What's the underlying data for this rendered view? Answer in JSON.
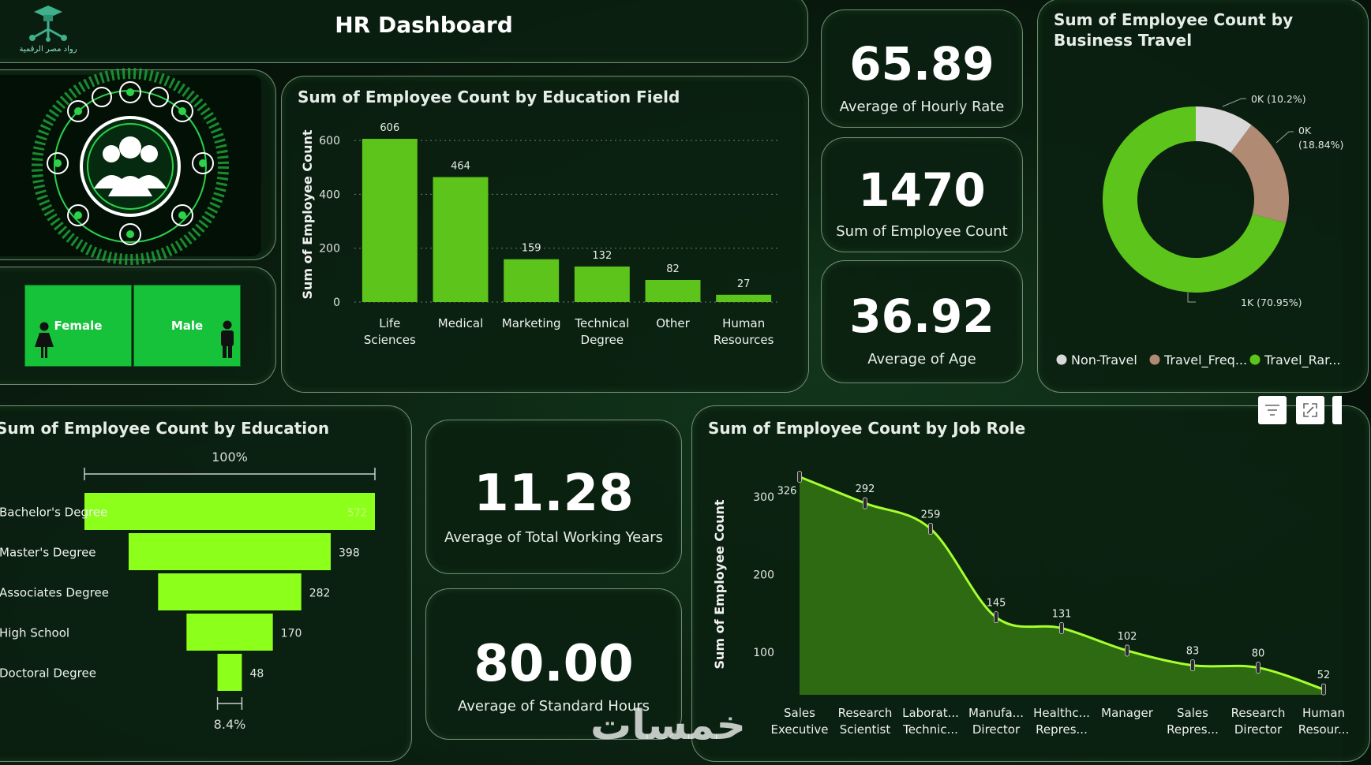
{
  "header": {
    "title": "HR Dashboard",
    "logo_caption": "رواد مصر الرقمية"
  },
  "gender": {
    "female_label": "Female",
    "male_label": "Male"
  },
  "kpis": {
    "hourly_rate": {
      "value": "65.89",
      "label": "Average of Hourly Rate"
    },
    "employee_count": {
      "value": "1470",
      "label": "Sum of Employee Count"
    },
    "age": {
      "value": "36.92",
      "label": "Average of Age"
    },
    "working_years": {
      "value": "11.28",
      "label": "Average of Total Working Years"
    },
    "standard_hours": {
      "value": "80.00",
      "label": "Average of Standard Hours"
    }
  },
  "watermark": "خمسات",
  "colors": {
    "accent": "#5cc41a",
    "funnel": "#8cff1a",
    "area": "#2f6f12",
    "line": "#a6ff2e",
    "non_travel": "#d9d9d9",
    "travel_freq": "#b08a73",
    "travel_rare": "#5cc41a"
  },
  "toolbar_icons": [
    "filter-icon",
    "focus-mode-icon",
    "more-icon"
  ],
  "chart_data": [
    {
      "id": "education_field",
      "type": "bar",
      "title": "Sum of Employee Count by Education Field",
      "ylabel": "Sum of Employee Count",
      "categories": [
        [
          "Life",
          "Sciences"
        ],
        [
          "Medical"
        ],
        [
          "Marketing"
        ],
        [
          "Technical",
          "Degree"
        ],
        [
          "Other"
        ],
        [
          "Human",
          "Resources"
        ]
      ],
      "values": [
        606,
        464,
        159,
        132,
        82,
        27
      ],
      "ylim": [
        0,
        650
      ],
      "yticks": [
        0,
        200,
        400,
        600
      ],
      "grid": true
    },
    {
      "id": "business_travel",
      "type": "pie",
      "title_lines": [
        "Sum of Employee Count by",
        "Business Travel"
      ],
      "slices": [
        {
          "name": "Non-Travel",
          "legend": "Non-Travel",
          "value": 10.2,
          "label": "0K (10.2%)"
        },
        {
          "name": "Travel_Frequently",
          "legend": "Travel_Freq...",
          "value": 18.84,
          "label_lines": [
            "0K",
            "(18.84%)"
          ]
        },
        {
          "name": "Travel_Rarely",
          "legend": "Travel_Rar...",
          "value": 70.95,
          "label": "1K (70.95%)"
        }
      ],
      "legend_position": "bottom"
    },
    {
      "id": "education",
      "type": "bar",
      "subtype": "funnel",
      "title": "Sum of Employee Count by Education",
      "categories": [
        "Bachelor's Degree",
        "Master's Degree",
        "Associates Degree",
        "High School",
        "Doctoral Degree"
      ],
      "values": [
        572,
        398,
        282,
        170,
        48
      ],
      "top_label": "100%",
      "bottom_label": "8.4%"
    },
    {
      "id": "job_role",
      "type": "area",
      "title": "Sum of Employee Count by Job Role",
      "ylabel": "Sum of Employee Count",
      "categories": [
        [
          "Sales",
          "Executive"
        ],
        [
          "Research",
          "Scientist"
        ],
        [
          "Laborat...",
          "Technic..."
        ],
        [
          "Manufa...",
          "Director"
        ],
        [
          "Healthc...",
          "Repres..."
        ],
        [
          "Manager"
        ],
        [
          "Sales",
          "Repres..."
        ],
        [
          "Research",
          "Director"
        ],
        [
          "Human",
          "Resour..."
        ]
      ],
      "values": [
        326,
        292,
        259,
        145,
        131,
        102,
        83,
        80,
        52
      ],
      "ylim": [
        45,
        350
      ],
      "yticks": [
        100,
        200,
        300
      ]
    }
  ]
}
